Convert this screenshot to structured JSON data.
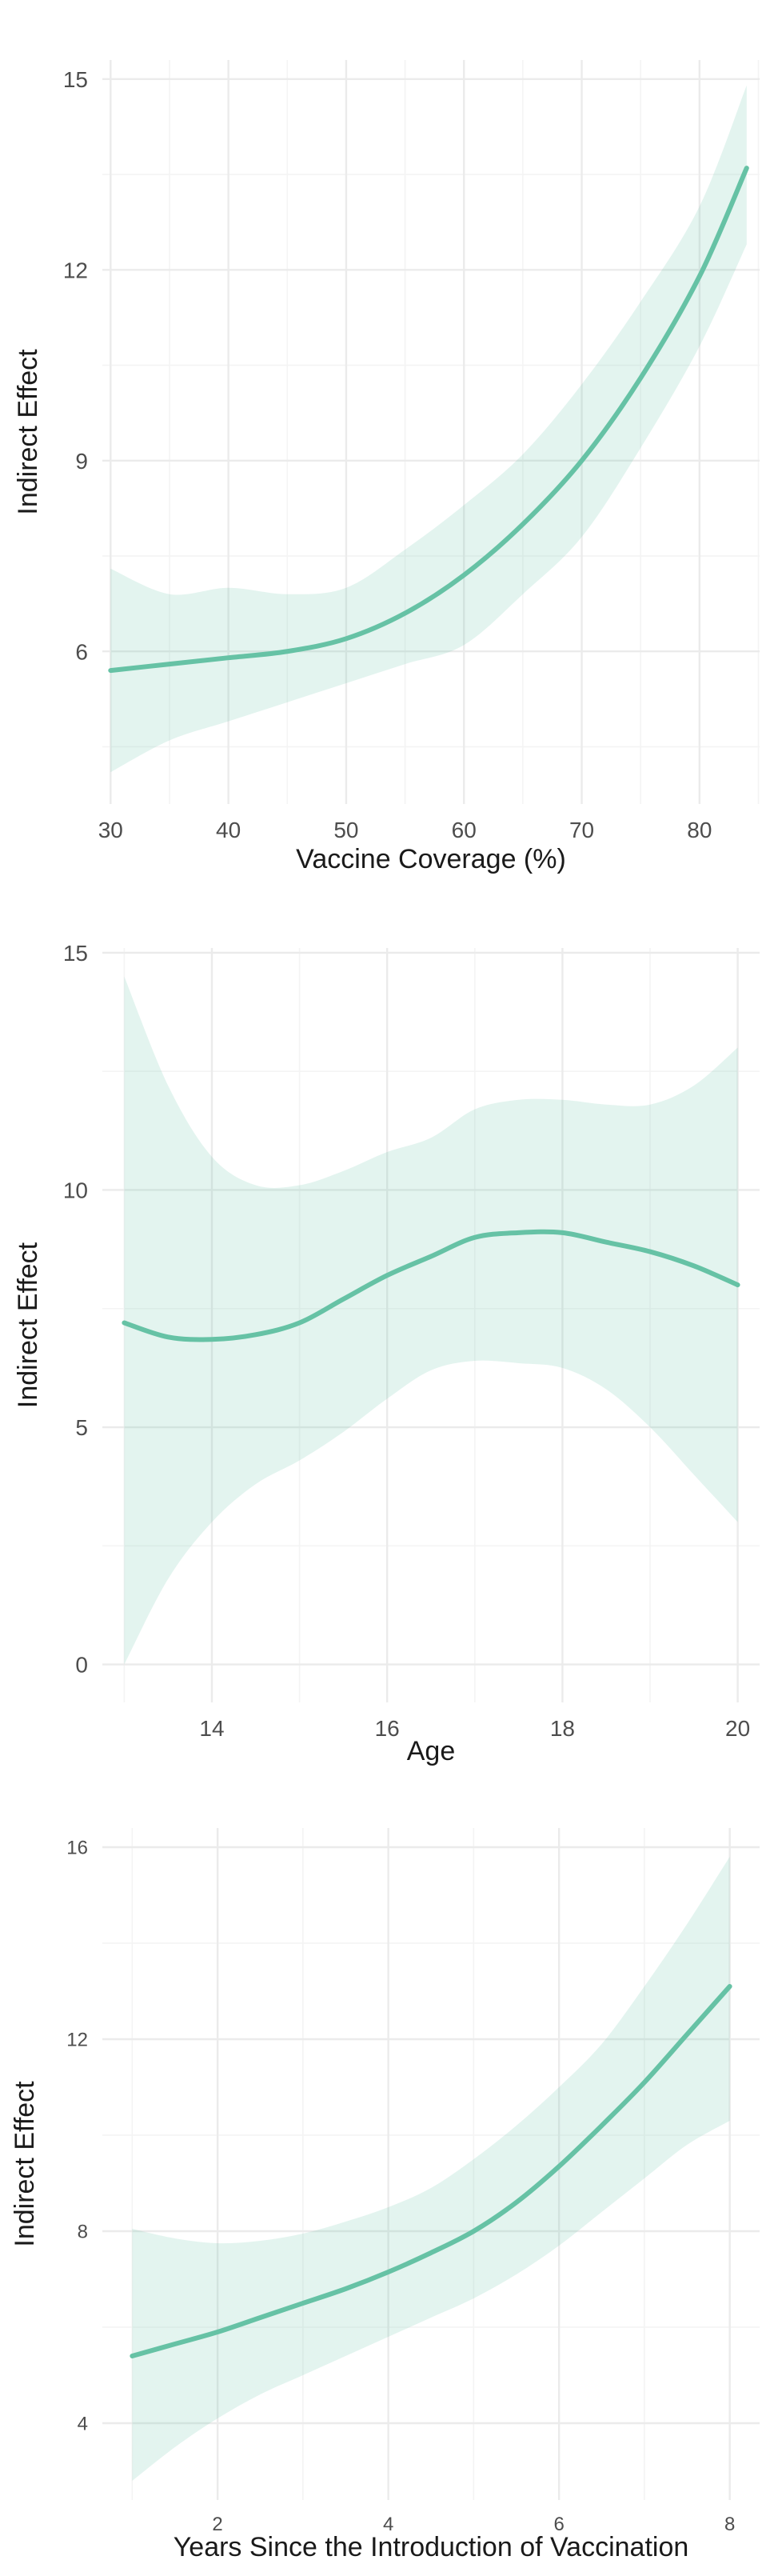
{
  "colors": {
    "line": "#66c2a5",
    "band": "#66c2a5",
    "grid": "#ebebeb",
    "text": "#4d4d4d"
  },
  "chart_data": [
    {
      "type": "line",
      "xlabel": "Vaccine Coverage (%)",
      "ylabel": "Indirect Effect",
      "xlim": [
        29.3,
        85.1
      ],
      "ylim": [
        3.6,
        15.3
      ],
      "xticks": [
        30,
        40,
        50,
        60,
        70,
        80
      ],
      "yticks": [
        6,
        9,
        12,
        15
      ],
      "grid": true,
      "legend": "none",
      "series": [
        {
          "x": [
            30,
            35,
            40,
            45,
            50,
            55,
            60,
            65,
            70,
            75,
            80,
            84
          ],
          "y": [
            5.7,
            5.8,
            5.9,
            6.0,
            6.2,
            6.6,
            7.2,
            8.0,
            9.0,
            10.3,
            11.9,
            13.6
          ],
          "lower": [
            4.1,
            4.6,
            4.9,
            5.2,
            5.5,
            5.8,
            6.1,
            6.9,
            7.8,
            9.2,
            10.8,
            12.4
          ],
          "upper": [
            7.3,
            6.9,
            7.0,
            6.9,
            7.0,
            7.6,
            8.3,
            9.1,
            10.2,
            11.5,
            13.0,
            14.9
          ]
        }
      ]
    },
    {
      "type": "line",
      "xlabel": "Age",
      "ylabel": "Indirect Effect",
      "xlim": [
        12.75,
        20.25
      ],
      "ylim": [
        -0.8,
        15.1
      ],
      "xticks": [
        14,
        16,
        18,
        20
      ],
      "yticks": [
        0,
        5,
        10,
        15
      ],
      "grid": true,
      "legend": "none",
      "series": [
        {
          "x": [
            13,
            13.5,
            14,
            14.5,
            15,
            15.5,
            16,
            16.5,
            17,
            17.5,
            18,
            18.5,
            19,
            19.5,
            20
          ],
          "y": [
            7.2,
            6.9,
            6.85,
            6.95,
            7.2,
            7.7,
            8.2,
            8.6,
            9.0,
            9.1,
            9.1,
            8.9,
            8.7,
            8.4,
            8.0
          ],
          "lower": [
            0.0,
            1.8,
            3.0,
            3.8,
            4.3,
            4.9,
            5.6,
            6.2,
            6.4,
            6.35,
            6.25,
            5.8,
            5.0,
            4.0,
            3.0
          ],
          "upper": [
            14.5,
            12.2,
            10.7,
            10.1,
            10.1,
            10.4,
            10.8,
            11.1,
            11.7,
            11.9,
            11.9,
            11.8,
            11.8,
            12.2,
            13.0
          ]
        }
      ]
    },
    {
      "type": "line",
      "xlabel": "Years Since the Introduction of Vaccination",
      "ylabel": "Indirect Effect",
      "xlim": [
        0.65,
        8.35
      ],
      "ylim": [
        2.4,
        16.4
      ],
      "xticks": [
        2,
        4,
        6,
        8
      ],
      "yticks": [
        4,
        8,
        12,
        16
      ],
      "grid": true,
      "legend": "none",
      "series": [
        {
          "x": [
            1,
            1.5,
            2,
            2.5,
            3,
            3.5,
            4,
            4.5,
            5,
            5.5,
            6,
            6.5,
            7,
            7.5,
            8
          ],
          "y": [
            5.4,
            5.65,
            5.9,
            6.2,
            6.5,
            6.8,
            7.15,
            7.55,
            8.0,
            8.6,
            9.35,
            10.2,
            11.1,
            12.1,
            13.1
          ],
          "lower": [
            2.8,
            3.5,
            4.1,
            4.6,
            5.0,
            5.4,
            5.8,
            6.2,
            6.6,
            7.1,
            7.7,
            8.4,
            9.1,
            9.8,
            10.3
          ],
          "upper": [
            8.05,
            7.85,
            7.75,
            7.8,
            7.95,
            8.2,
            8.5,
            8.9,
            9.5,
            10.2,
            11.0,
            11.9,
            13.1,
            14.4,
            15.8
          ]
        }
      ]
    }
  ]
}
